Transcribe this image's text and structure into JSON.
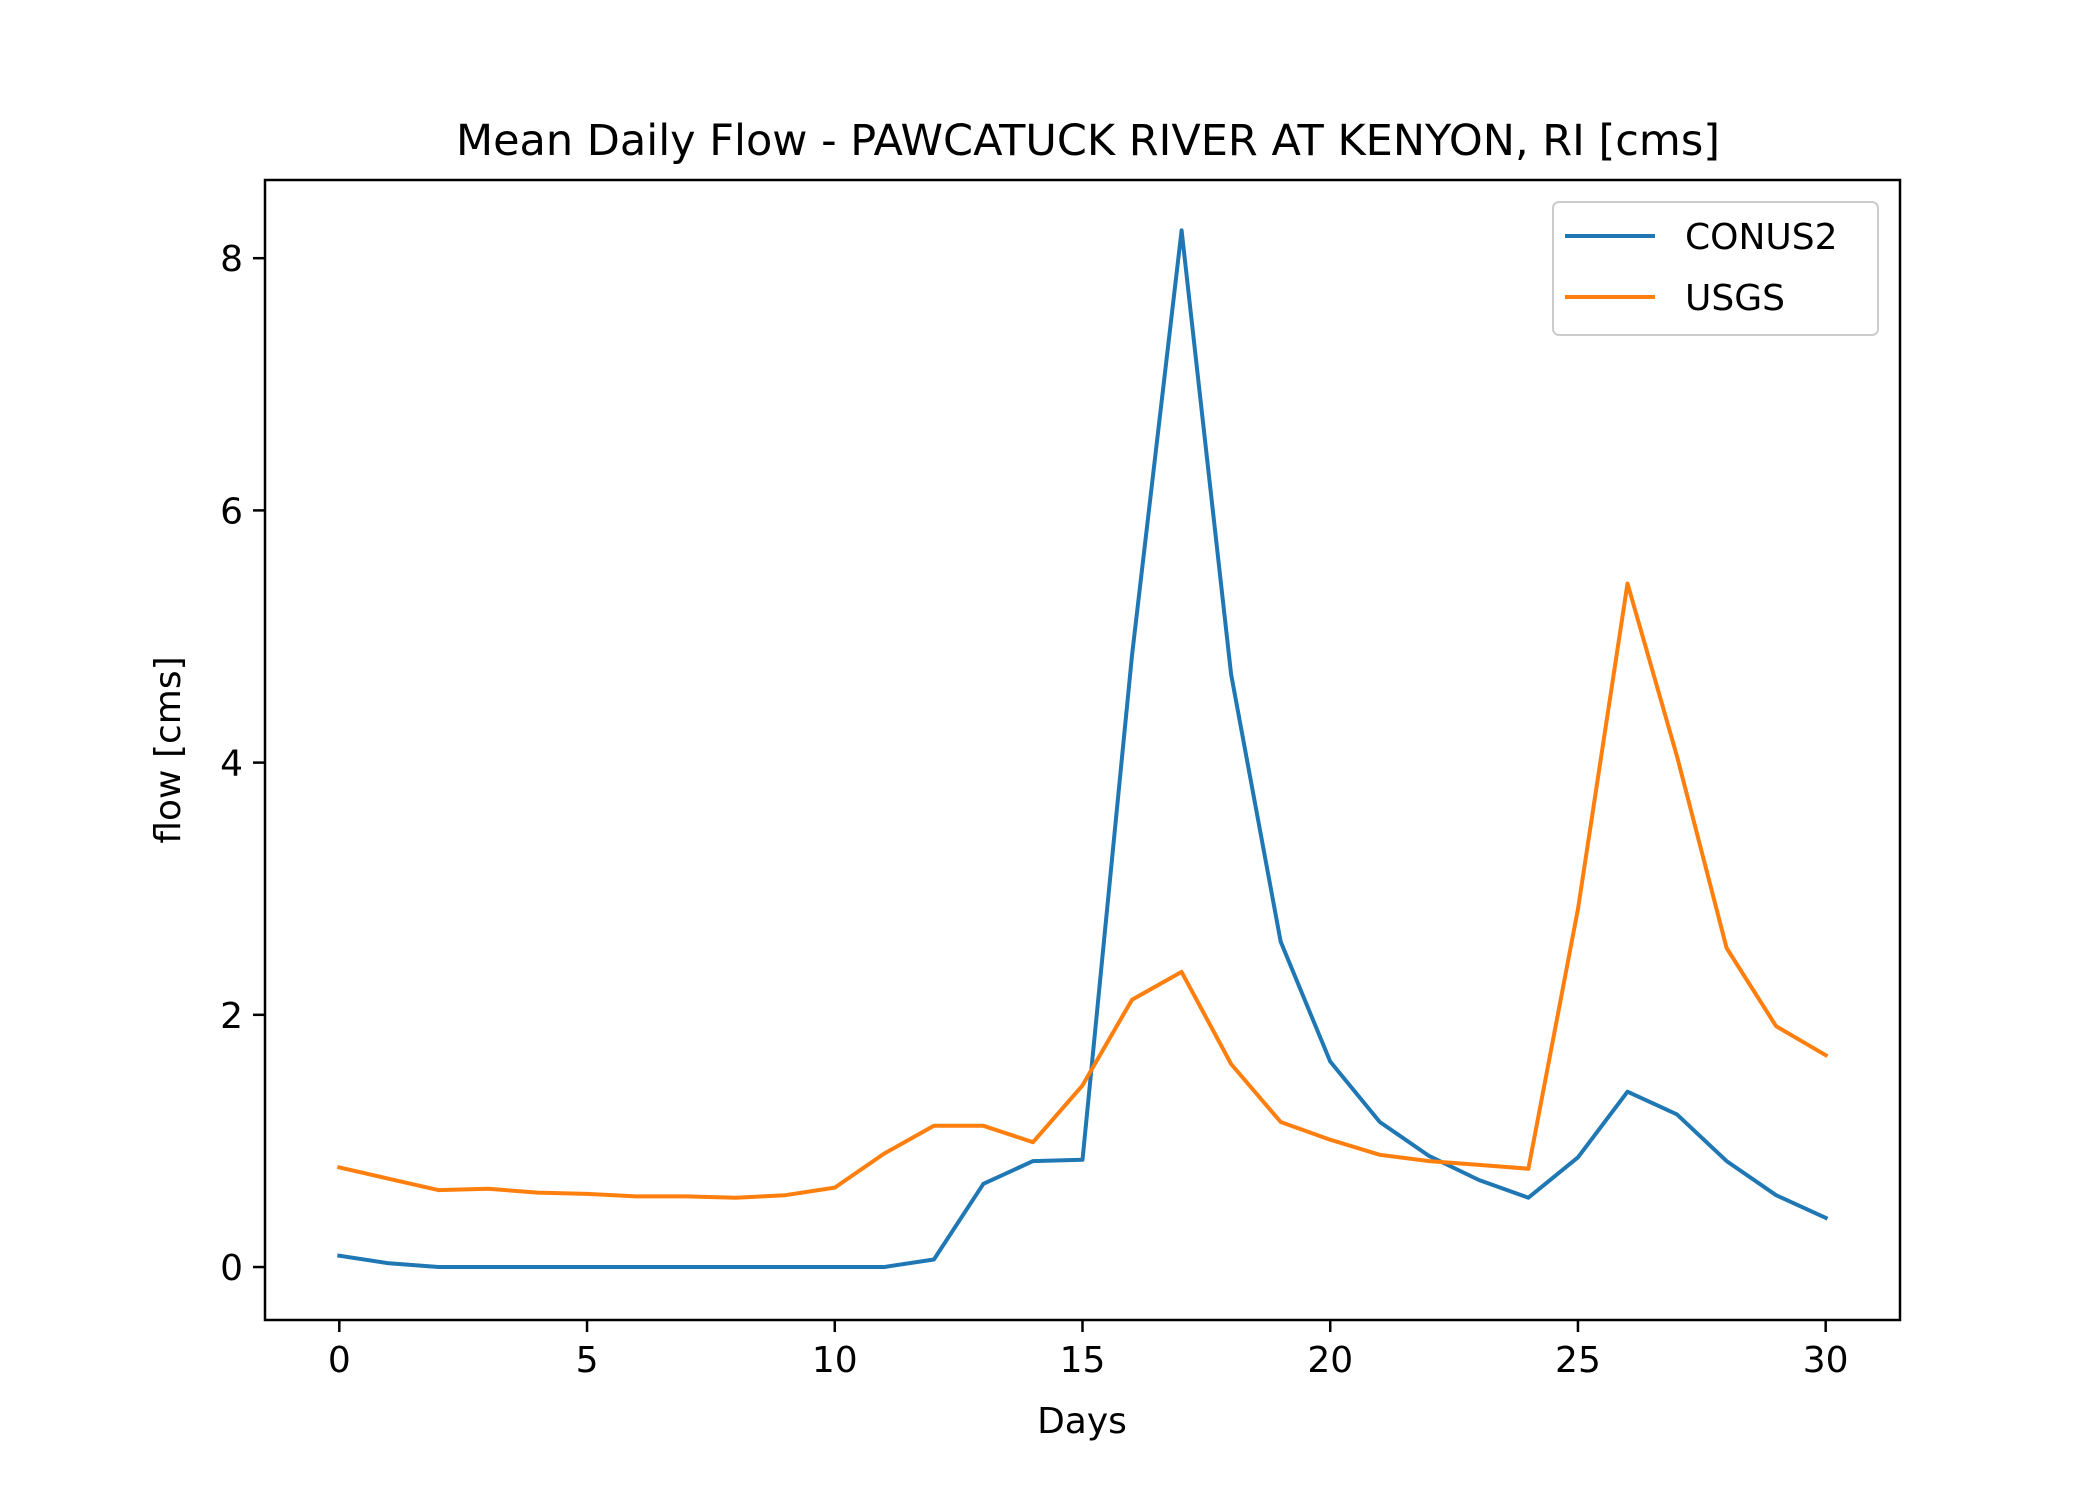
{
  "chart_data": {
    "type": "line",
    "title": "Mean Daily Flow - PAWCATUCK RIVER AT KENYON, RI [cms]",
    "xlabel": "Days",
    "ylabel": "flow [cms]",
    "xlim": [
      -1.5,
      31.5
    ],
    "ylim": [
      -0.42,
      8.62
    ],
    "xticks": [
      0,
      5,
      10,
      15,
      20,
      25,
      30
    ],
    "yticks": [
      0,
      2,
      4,
      6,
      8
    ],
    "grid": false,
    "legend_position": "top-right",
    "x": [
      0,
      1,
      2,
      3,
      4,
      5,
      6,
      7,
      8,
      9,
      10,
      11,
      12,
      13,
      14,
      15,
      16,
      17,
      18,
      19,
      20,
      21,
      22,
      23,
      24,
      25,
      26,
      27,
      28,
      29,
      30
    ],
    "series": [
      {
        "name": "CONUS2",
        "color": "#1f77b4",
        "values": [
          0.09,
          0.03,
          0.0,
          0.0,
          0.0,
          0.0,
          0.0,
          0.0,
          0.0,
          0.0,
          0.0,
          0.0,
          0.06,
          0.66,
          0.84,
          0.85,
          4.85,
          8.22,
          4.7,
          2.58,
          1.63,
          1.15,
          0.88,
          0.69,
          0.55,
          0.87,
          1.39,
          1.21,
          0.84,
          0.57,
          0.39
        ]
      },
      {
        "name": "USGS",
        "color": "#ff7f0e",
        "values": [
          0.79,
          0.7,
          0.61,
          0.62,
          0.59,
          0.58,
          0.56,
          0.56,
          0.55,
          0.57,
          0.63,
          0.9,
          1.12,
          1.12,
          0.99,
          1.44,
          2.12,
          2.34,
          1.61,
          1.15,
          1.01,
          0.89,
          0.84,
          0.81,
          0.78,
          2.84,
          5.42,
          4.05,
          2.53,
          1.91,
          1.68
        ]
      }
    ]
  }
}
